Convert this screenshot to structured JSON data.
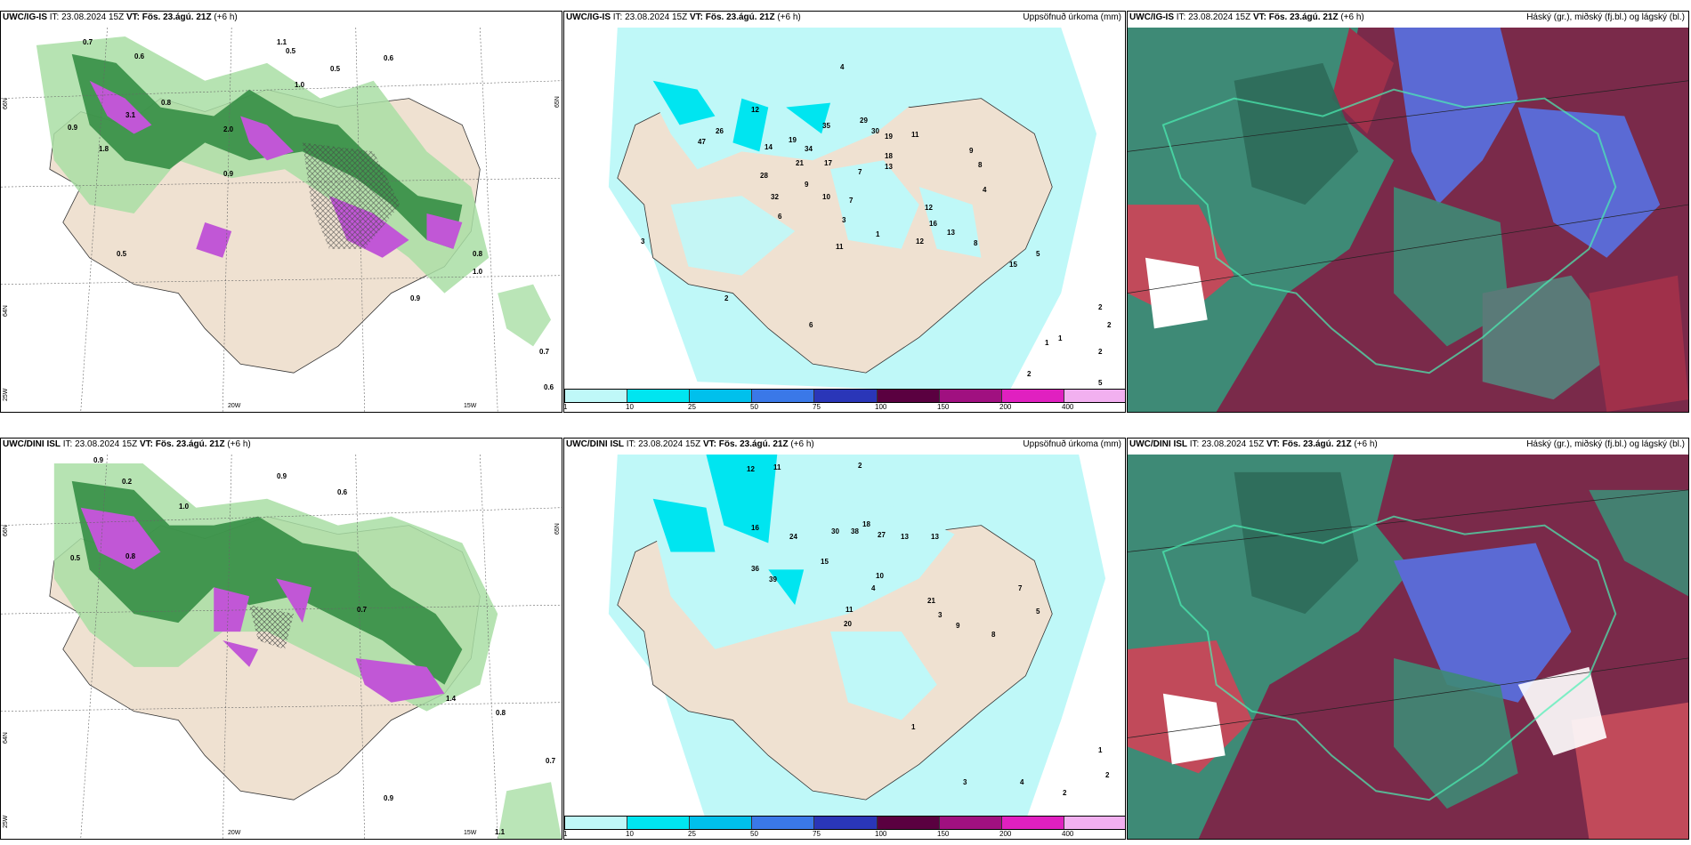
{
  "panels": {
    "p1": {
      "model": "UWC/IG-IS",
      "it_label": "IT:",
      "it": "23.08.2024 15Z",
      "vt_label": "VT:",
      "vt": "Fös. 23.ágú. 21Z",
      "lead": "(+6 h)"
    },
    "p2": {
      "model": "UWC/IG-IS",
      "it_label": "IT:",
      "it": "23.08.2024 15Z",
      "vt_label": "VT:",
      "vt": "Fös. 23.ágú. 21Z",
      "lead": "(+6 h)",
      "right": "Uppsöfnuð úrkoma (mm)"
    },
    "p3": {
      "model": "UWC/IG-IS",
      "it_label": "IT:",
      "it": "23.08.2024 15Z",
      "vt_label": "VT:",
      "vt": "Fös. 23.ágú. 21Z",
      "lead": "(+6 h)",
      "right": "Háský (gr.), miðský (fj.bl.) og lágský (bl.)"
    },
    "p4": {
      "model": "UWC/DINI ISL",
      "it_label": "IT:",
      "it": "23.08.2024 15Z",
      "vt_label": "VT:",
      "vt": "Fös. 23.ágú. 21Z",
      "lead": "(+6 h)"
    },
    "p5": {
      "model": "UWC/DINI ISL",
      "it_label": "IT:",
      "it": "23.08.2024 15Z",
      "vt_label": "VT:",
      "vt": "Fös. 23.ágú. 21Z",
      "lead": "(+6 h)",
      "right": "Uppsöfnuð úrkoma (mm)"
    },
    "p6": {
      "model": "UWC/DINI ISL",
      "it_label": "IT:",
      "it": "23.08.2024 15Z",
      "vt_label": "VT:",
      "vt": "Fös. 23.ágú. 21Z",
      "lead": "(+6 h)",
      "right": "Háský (gr.), miðský (fj.bl.) og lágský (bl.)"
    }
  },
  "axes": {
    "lat_66": "66N",
    "lat_64": "64N",
    "lat_65": "65N",
    "lon_20": "20W",
    "lon_15": "15W",
    "lon_25": "25W"
  },
  "colorbar": {
    "ticks": [
      "1",
      "10",
      "25",
      "50",
      "75",
      "100",
      "150",
      "200",
      "400"
    ],
    "colors": [
      "#bff8f8",
      "#00e5f0",
      "#00c0ec",
      "#3a78e8",
      "#2a36b8",
      "#5a0040",
      "#a01080",
      "#e020c0",
      "#f2b0f0"
    ]
  },
  "precip_labels_top": [
    "4",
    "12",
    "26",
    "47",
    "14",
    "19",
    "34",
    "35",
    "29",
    "30",
    "19",
    "11",
    "21",
    "17",
    "7",
    "18",
    "13",
    "28",
    "9",
    "10",
    "12",
    "9",
    "8",
    "32",
    "7",
    "3",
    "11",
    "1",
    "6",
    "4",
    "12",
    "16",
    "13",
    "8",
    "15",
    "5",
    "3",
    "2",
    "2",
    "2",
    "6",
    "1",
    "1",
    "2",
    "2",
    "5"
  ],
  "precip_labels_bottom": [
    "12",
    "11",
    "2",
    "16",
    "24",
    "30",
    "38",
    "27",
    "18",
    "13",
    "13",
    "15",
    "39",
    "36",
    "10",
    "21",
    "11",
    "20",
    "4",
    "3",
    "9",
    "8",
    "7",
    "5",
    "1",
    "1",
    "2",
    "2",
    "4",
    "3"
  ],
  "wind_labels_top": [
    "0.7",
    "0.6",
    "0.5",
    "0.8",
    "0.9",
    "1.0",
    "1.1",
    "0.6",
    "0.5",
    "3.1",
    "2.0",
    "1.8",
    "0.9",
    "0.5",
    "0.7",
    "1.0",
    "0.6",
    "0.8",
    "0.9"
  ],
  "wind_labels_bottom": [
    "0.9",
    "0.2",
    "1.0",
    "0.9",
    "0.6",
    "0.8",
    "0.5",
    "0.7",
    "1.4",
    "0.9",
    "0.8",
    "0.7",
    "1.1"
  ]
}
